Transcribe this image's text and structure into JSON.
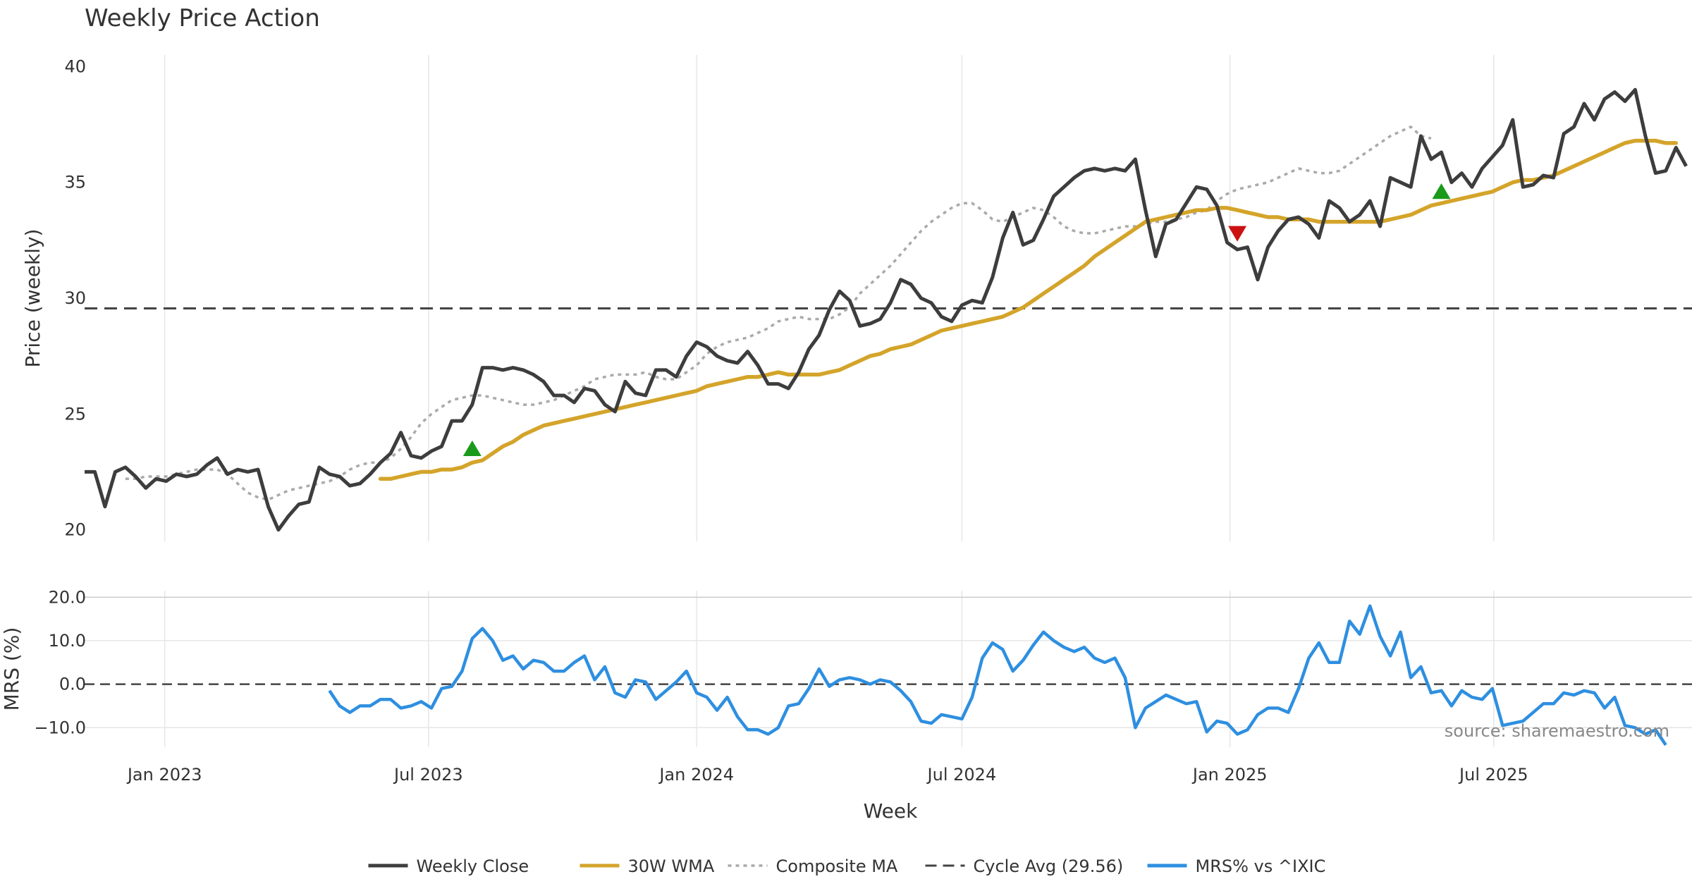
{
  "chart_data": {
    "title": "Weekly Price Action",
    "source_note": "source: sharemaestro.com",
    "legend_position": "bottom-center",
    "colors": {
      "close": "#3d3d3d",
      "wma": "#d4a42a",
      "composite": "#aaaaaa",
      "cycle": "#444444",
      "mrs": "#2e8fe0",
      "buy": "#1a9a1a",
      "sell": "#cc1111",
      "grid": "#e6e6e6"
    },
    "legend": [
      {
        "key": "close",
        "label": "Weekly Close",
        "style": "solid"
      },
      {
        "key": "wma",
        "label": "30W WMA",
        "style": "solid"
      },
      {
        "key": "composite",
        "label": "Composite MA",
        "style": "dotted"
      },
      {
        "key": "cycle",
        "label": "Cycle Avg (29.56)",
        "style": "dashed"
      },
      {
        "key": "mrs",
        "label": "MRS% vs ^IXIC",
        "style": "solid"
      }
    ],
    "x_axis": {
      "label": "Week",
      "range": [
        "2022-11-07",
        "2025-11-14"
      ],
      "ticks": [
        {
          "date": "2023-01-01",
          "label": "Jan 2023"
        },
        {
          "date": "2023-07-01",
          "label": "Jul 2023"
        },
        {
          "date": "2024-01-01",
          "label": "Jan 2024"
        },
        {
          "date": "2024-07-01",
          "label": "Jul 2024"
        },
        {
          "date": "2025-01-01",
          "label": "Jan 2025"
        },
        {
          "date": "2025-07-01",
          "label": "Jul 2025"
        }
      ]
    },
    "price_panel": {
      "type": "line",
      "ylabel": "Price (weekly)",
      "ylim": [
        19.5,
        40.5
      ],
      "yticks": [
        20,
        25,
        30,
        35,
        40
      ],
      "cycle_avg": 29.56,
      "series": {
        "close": {
          "start": "2022-11-07",
          "step_days": 7,
          "values": [
            22.5,
            22.5,
            21.0,
            22.5,
            22.7,
            22.3,
            21.8,
            22.2,
            22.1,
            22.4,
            22.3,
            22.4,
            22.8,
            23.1,
            22.4,
            22.6,
            22.5,
            22.6,
            21.0,
            20.0,
            20.6,
            21.1,
            21.2,
            22.7,
            22.4,
            22.3,
            21.9,
            22.0,
            22.4,
            22.9,
            23.3,
            24.2,
            23.2,
            23.1,
            23.4,
            23.6,
            24.7,
            24.7,
            25.4,
            27.0,
            27.0,
            26.9,
            27.0,
            26.9,
            26.7,
            26.4,
            25.8,
            25.8,
            25.5,
            26.1,
            26.0,
            25.4,
            25.1,
            26.4,
            25.9,
            25.8,
            26.9,
            26.9,
            26.6,
            27.5,
            28.1,
            27.9,
            27.5,
            27.3,
            27.2,
            27.7,
            27.1,
            26.3,
            26.3,
            26.1,
            26.8,
            27.8,
            28.4,
            29.5,
            30.3,
            29.9,
            28.8,
            28.9,
            29.1,
            29.8,
            30.8,
            30.6,
            30.0,
            29.8,
            29.2,
            29.0,
            29.7,
            29.9,
            29.8,
            30.9,
            32.6,
            33.7,
            32.3,
            32.5,
            33.4,
            34.4,
            34.8,
            35.2,
            35.5,
            35.6,
            35.5,
            35.6,
            35.5,
            36.0,
            33.8,
            31.8,
            33.2,
            33.4,
            34.1,
            34.8,
            34.7,
            34.0,
            32.4,
            32.1,
            32.2,
            30.8,
            32.2,
            32.9,
            33.4,
            33.5,
            33.2,
            32.6,
            34.2,
            33.9,
            33.3,
            33.6,
            34.2,
            33.1,
            35.2,
            35.0,
            34.8,
            37.0,
            36.0,
            36.3,
            35.0,
            35.4,
            34.8,
            35.6,
            36.1,
            36.6,
            37.7,
            34.8,
            34.9,
            35.3,
            35.2,
            37.1,
            37.4,
            38.4,
            37.7,
            38.6,
            38.9,
            38.5,
            39.0,
            37.0,
            35.4,
            35.5,
            36.5,
            35.7
          ]
        },
        "wma": {
          "start": "2023-05-29",
          "step_days": 7,
          "values": [
            22.2,
            22.2,
            22.3,
            22.4,
            22.5,
            22.5,
            22.6,
            22.6,
            22.7,
            22.9,
            23.0,
            23.3,
            23.6,
            23.8,
            24.1,
            24.3,
            24.5,
            24.6,
            24.7,
            24.8,
            24.9,
            25.0,
            25.1,
            25.2,
            25.3,
            25.4,
            25.5,
            25.6,
            25.7,
            25.8,
            25.9,
            26.0,
            26.2,
            26.3,
            26.4,
            26.5,
            26.6,
            26.6,
            26.7,
            26.8,
            26.7,
            26.7,
            26.7,
            26.7,
            26.8,
            26.9,
            27.1,
            27.3,
            27.5,
            27.6,
            27.8,
            27.9,
            28.0,
            28.2,
            28.4,
            28.6,
            28.7,
            28.8,
            28.9,
            29.0,
            29.1,
            29.2,
            29.4,
            29.6,
            29.9,
            30.2,
            30.5,
            30.8,
            31.1,
            31.4,
            31.8,
            32.1,
            32.4,
            32.7,
            33.0,
            33.3,
            33.4,
            33.5,
            33.6,
            33.7,
            33.8,
            33.8,
            33.9,
            33.9,
            33.8,
            33.7,
            33.6,
            33.5,
            33.5,
            33.4,
            33.4,
            33.4,
            33.3,
            33.3,
            33.3,
            33.3,
            33.3,
            33.3,
            33.3,
            33.4,
            33.5,
            33.6,
            33.8,
            34.0,
            34.1,
            34.2,
            34.3,
            34.4,
            34.5,
            34.6,
            34.8,
            35.0,
            35.1,
            35.1,
            35.2,
            35.3,
            35.5,
            35.7,
            35.9,
            36.1,
            36.3,
            36.5,
            36.7,
            36.8,
            36.8,
            36.8,
            36.7,
            36.7
          ]
        },
        "composite": {
          "start": "2022-12-05",
          "step_days": 7,
          "values": [
            22.2,
            22.2,
            22.3,
            22.3,
            22.3,
            22.4,
            22.5,
            22.6,
            22.6,
            22.6,
            22.4,
            22.0,
            21.6,
            21.4,
            21.3,
            21.5,
            21.7,
            21.8,
            21.9,
            22.0,
            22.1,
            22.3,
            22.6,
            22.8,
            22.9,
            22.9,
            23.1,
            23.5,
            24.0,
            24.6,
            25.0,
            25.3,
            25.6,
            25.7,
            25.8,
            25.8,
            25.7,
            25.6,
            25.5,
            25.4,
            25.4,
            25.5,
            25.6,
            25.8,
            26.0,
            26.2,
            26.5,
            26.6,
            26.7,
            26.7,
            26.7,
            26.8,
            26.6,
            26.5,
            26.5,
            26.8,
            27.1,
            27.6,
            27.9,
            28.1,
            28.2,
            28.3,
            28.5,
            28.7,
            29.0,
            29.1,
            29.2,
            29.1,
            29.1,
            29.1,
            29.3,
            29.6,
            30.2,
            30.6,
            31.0,
            31.4,
            31.9,
            32.4,
            32.9,
            33.3,
            33.6,
            33.9,
            34.1,
            34.1,
            33.8,
            33.4,
            33.3,
            33.5,
            33.7,
            33.9,
            33.8,
            33.5,
            33.1,
            32.9,
            32.8,
            32.8,
            32.9,
            33.0,
            33.1,
            33.1,
            33.2,
            33.3,
            33.3,
            33.4,
            33.5,
            33.7,
            33.8,
            34.2,
            34.5,
            34.7,
            34.8,
            34.9,
            35.0,
            35.2,
            35.4,
            35.6,
            35.5,
            35.4,
            35.4,
            35.5,
            35.8,
            36.1,
            36.4,
            36.7,
            37.0,
            37.2,
            37.4,
            37.0,
            36.9
          ]
        }
      },
      "markers": [
        {
          "date": "2023-07-31",
          "value": 23.5,
          "kind": "buy"
        },
        {
          "date": "2025-01-06",
          "value": 32.8,
          "kind": "sell"
        },
        {
          "date": "2025-05-26",
          "value": 34.6,
          "kind": "buy"
        }
      ]
    },
    "mrs_panel": {
      "type": "line",
      "ylabel": "MRS (%)",
      "ylim": [
        -14.5,
        21.5
      ],
      "yticks": [
        {
          "value": 20,
          "label": "20.0"
        },
        {
          "value": 10,
          "label": "10.0"
        },
        {
          "value": 0,
          "label": "0.0"
        },
        {
          "value": -10,
          "label": "−10.0"
        }
      ],
      "zero_line": 0,
      "series": {
        "mrs": {
          "start": "2023-04-24",
          "step_days": 7,
          "values": [
            -1.5,
            -5.0,
            -6.5,
            -5.0,
            -5.0,
            -3.5,
            -3.5,
            -5.5,
            -5.0,
            -4.0,
            -5.5,
            -1.0,
            -0.5,
            3.0,
            10.5,
            12.8,
            10.0,
            5.5,
            6.5,
            3.5,
            5.5,
            5.0,
            3.0,
            3.0,
            5.0,
            6.5,
            1.0,
            4.0,
            -2.0,
            -3.0,
            1.0,
            0.5,
            -3.5,
            -1.5,
            0.5,
            3.0,
            -2.0,
            -3.0,
            -6.0,
            -3.0,
            -7.5,
            -10.5,
            -10.5,
            -11.5,
            -10.0,
            -5.0,
            -4.5,
            -1.0,
            3.5,
            -0.5,
            1.0,
            1.5,
            1.0,
            0.0,
            1.0,
            0.5,
            -1.5,
            -4.0,
            -8.5,
            -9.0,
            -7.0,
            -7.5,
            -8.0,
            -3.0,
            6.0,
            9.5,
            8.0,
            3.0,
            5.5,
            9.0,
            12.0,
            10.0,
            8.5,
            7.5,
            8.5,
            6.0,
            5.0,
            6.0,
            1.5,
            -10.0,
            -5.5,
            -4.0,
            -2.5,
            -3.5,
            -4.5,
            -4.0,
            -11.0,
            -8.5,
            -9.0,
            -11.5,
            -10.5,
            -7.0,
            -5.5,
            -5.5,
            -6.5,
            -1.0,
            6.0,
            9.5,
            5.0,
            5.0,
            14.5,
            11.5,
            18.0,
            11.0,
            6.5,
            12.0,
            1.5,
            4.0,
            -2.0,
            -1.5,
            -5.0,
            -1.5,
            -3.0,
            -3.5,
            -1.0,
            -9.5,
            -9.0,
            -8.5,
            -6.5,
            -4.5,
            -4.5,
            -2.0,
            -2.5,
            -1.5,
            -2.0,
            -5.5,
            -3.0,
            -9.5,
            -10.0,
            -11.5,
            -10.5,
            -14.0
          ]
        }
      }
    }
  }
}
